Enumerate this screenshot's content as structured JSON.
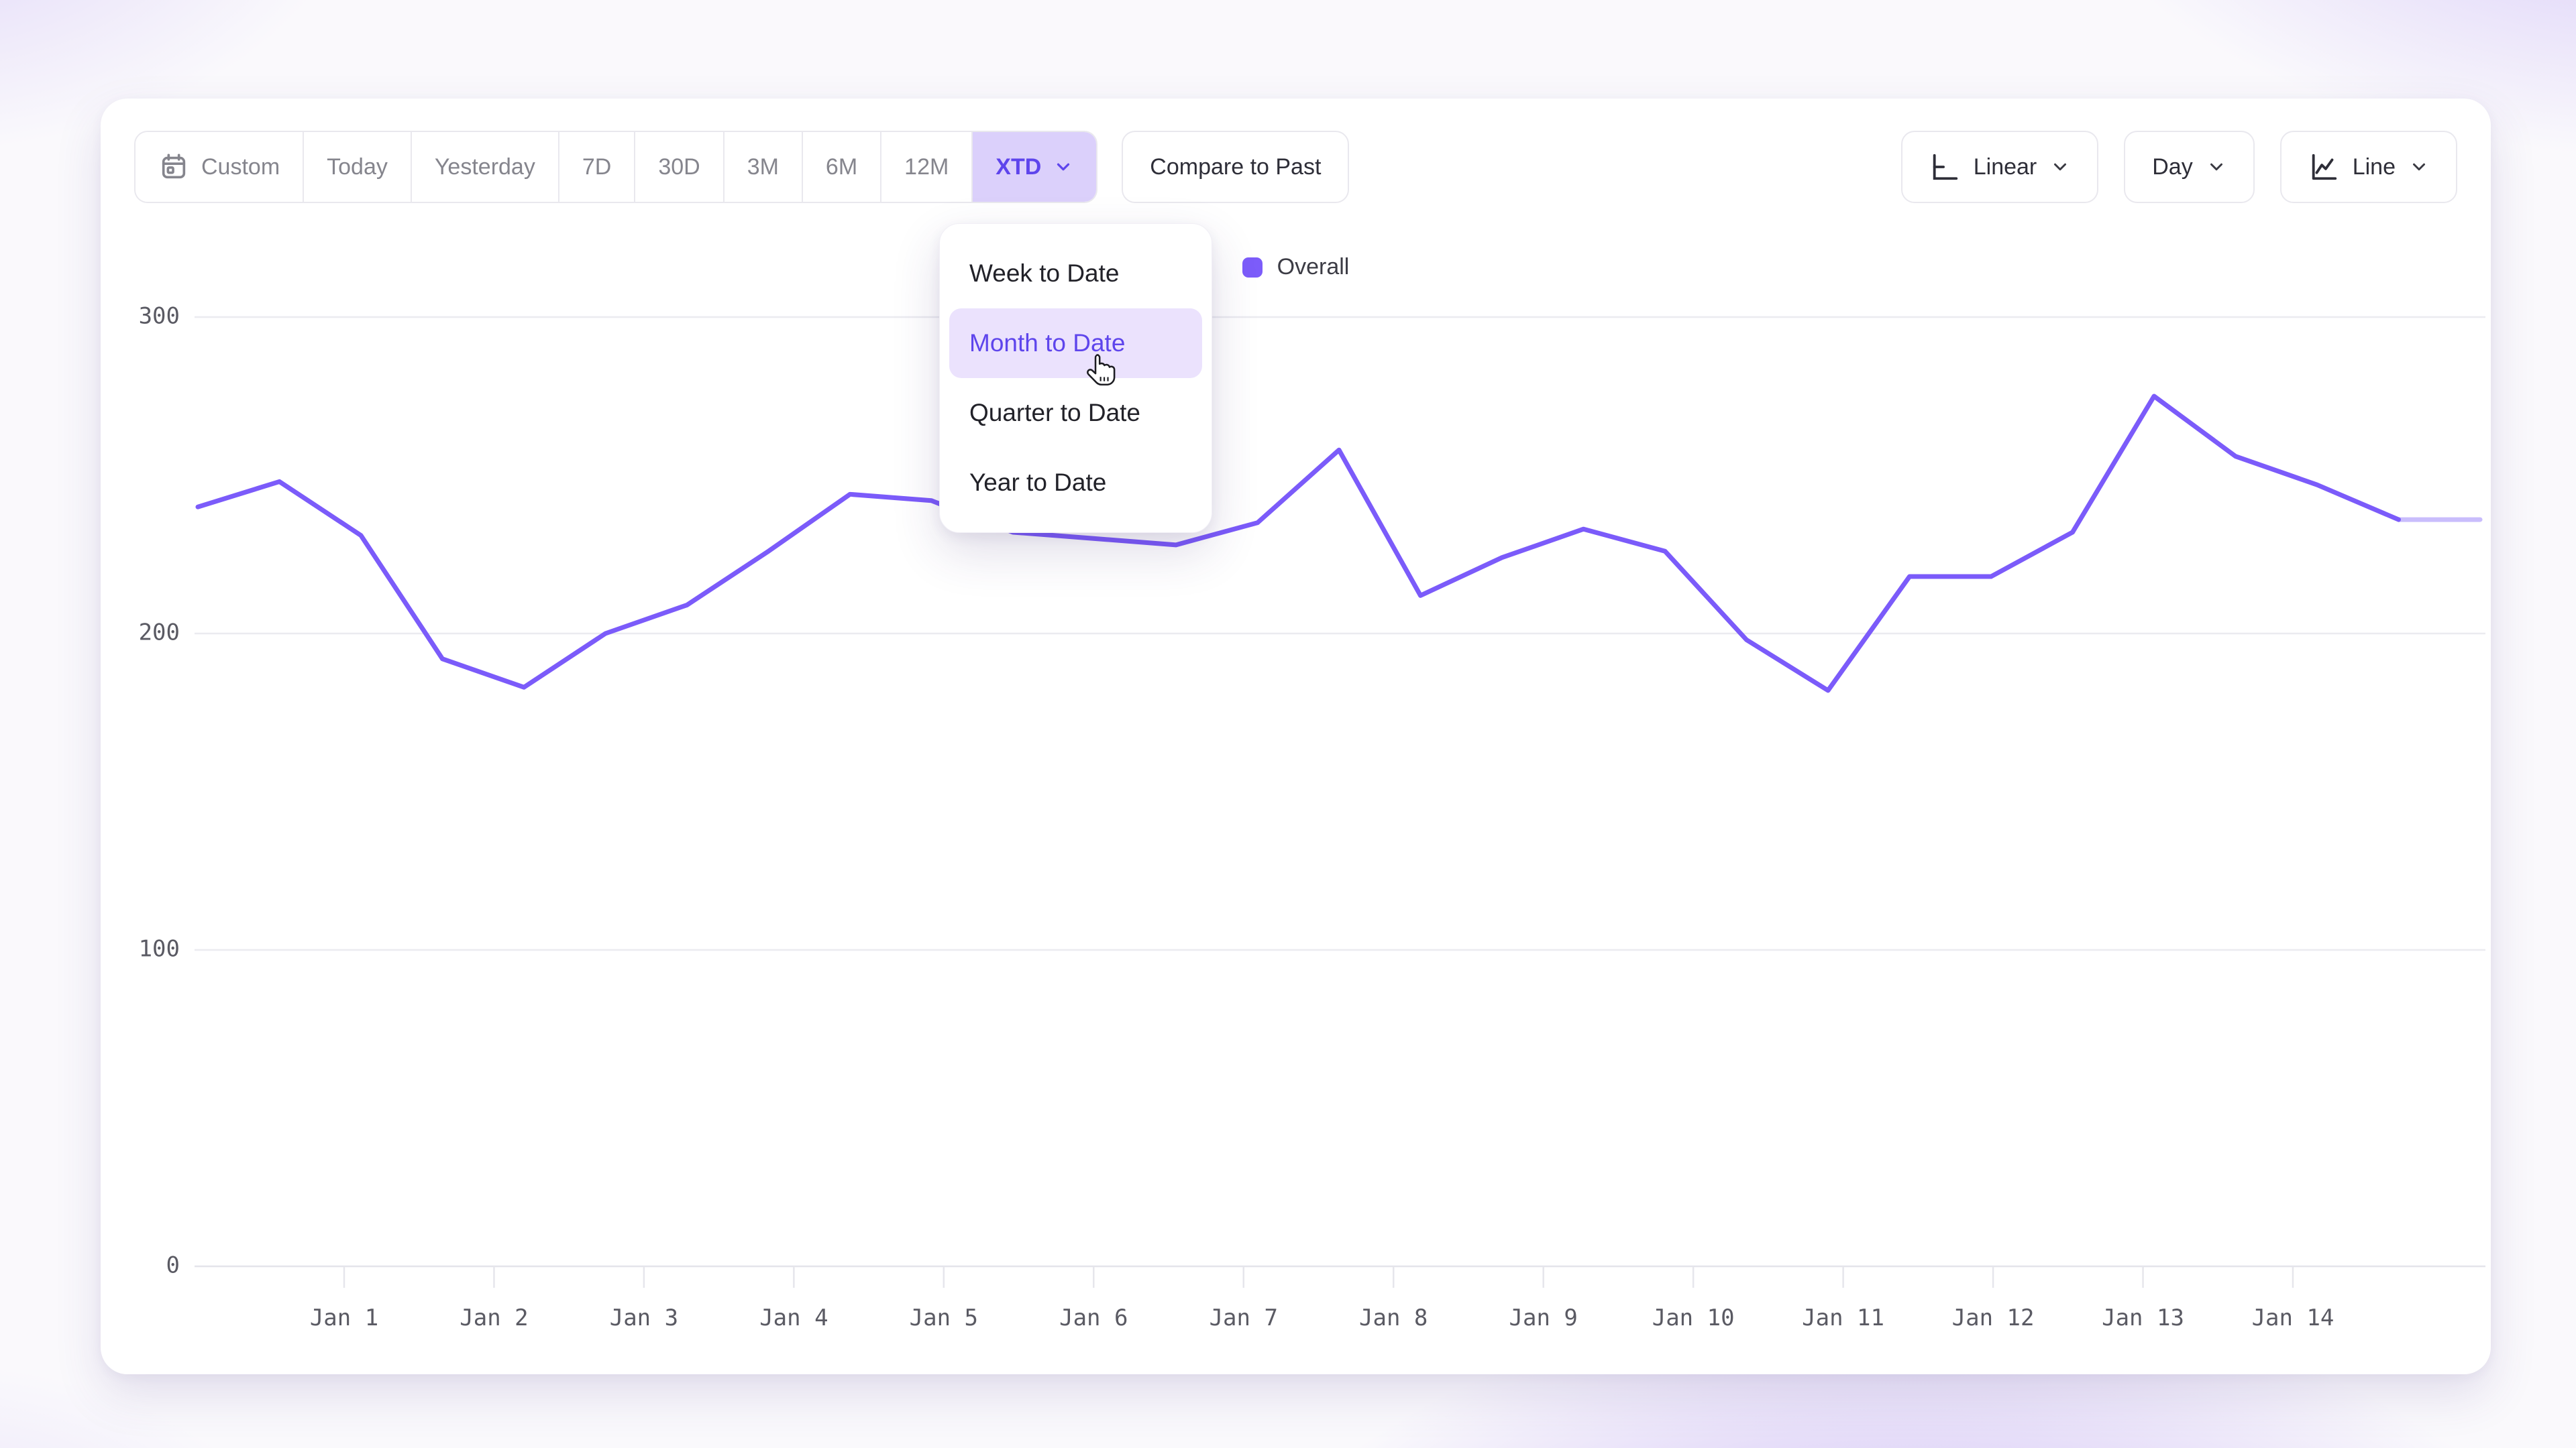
{
  "toolbar": {
    "date_ranges": [
      "Custom",
      "Today",
      "Yesterday",
      "7D",
      "30D",
      "3M",
      "6M",
      "12M",
      "XTD"
    ],
    "selected_range": "XTD",
    "compare_label": "Compare to Past",
    "scale_label": "Linear",
    "interval_label": "Day",
    "chart_type_label": "Line"
  },
  "dropdown_menu": {
    "items": [
      "Week to Date",
      "Month to Date",
      "Quarter to Date",
      "Year to Date"
    ],
    "highlighted": "Month to Date"
  },
  "legend": {
    "label": "Overall",
    "color": "#7c5cfa"
  },
  "chart_data": {
    "type": "line",
    "title": "",
    "xlabel": "",
    "ylabel": "",
    "x_tick_labels": [
      "Jan 1",
      "Jan 2",
      "Jan 3",
      "Jan 4",
      "Jan 5",
      "Jan 6",
      "Jan 7",
      "Jan 8",
      "Jan 9",
      "Jan 10",
      "Jan 11",
      "Jan 12",
      "Jan 13",
      "Jan 14"
    ],
    "y_ticks": [
      0,
      100,
      200,
      300
    ],
    "ylim": [
      0,
      310
    ],
    "grid": "horizontal",
    "legend_position": "top-center",
    "points_per_day": 2,
    "series": [
      {
        "name": "Overall",
        "color": "#7b5bfa",
        "values": [
          240,
          248,
          231,
          192,
          183,
          200,
          209,
          226,
          244,
          242,
          232,
          230,
          228,
          235,
          258,
          212,
          224,
          233,
          226,
          198,
          182,
          218,
          218,
          232,
          275,
          256,
          247,
          236,
          236
        ],
        "last_segment_faded": true
      }
    ]
  }
}
